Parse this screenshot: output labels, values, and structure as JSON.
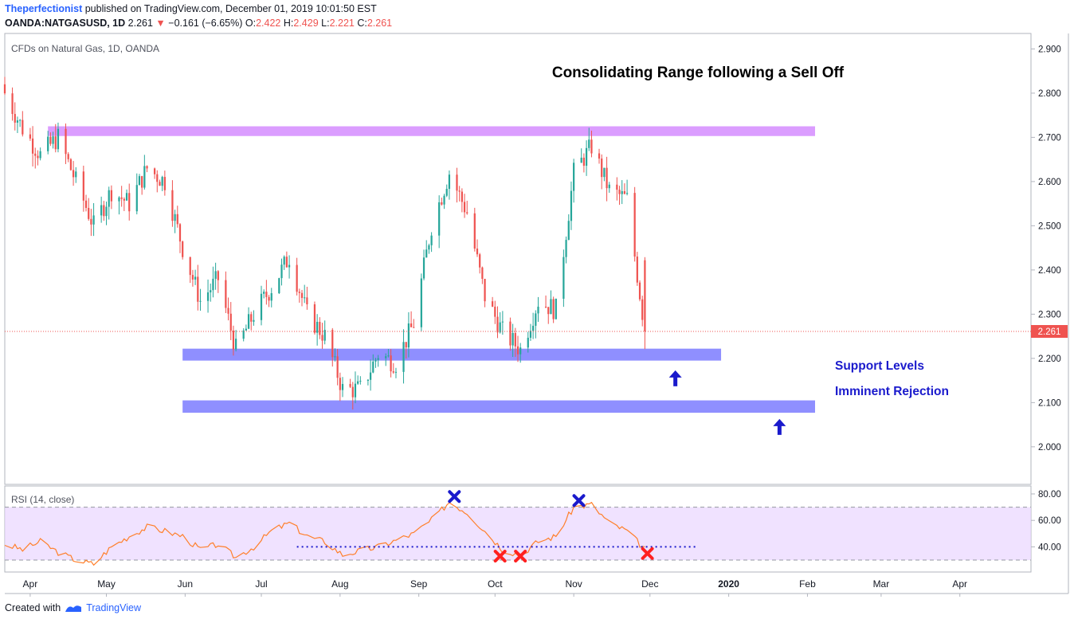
{
  "header": {
    "author": "Theperfectionist",
    "published": "published on TradingView.com, December 01, 2019 10:01:50 EST",
    "symbol": "OANDA:NATGASUSD, 1D",
    "last": "2.261",
    "change": "−0.161 (−6.65%)",
    "o_label": "O:",
    "o_value": "2.422",
    "h_label": "H:",
    "h_value": "2.429",
    "l_label": "L:",
    "l_value": "2.221",
    "c_label": "C:",
    "c_value": "2.261"
  },
  "footer": {
    "created_with": "Created with",
    "brand": "TradingView"
  },
  "colors": {
    "up": "#26a69a",
    "down": "#ef5350",
    "support_zone": "#7b7bff",
    "resistance_zone": "#d58cff",
    "rsi_line": "#ff7f2a",
    "rsi_band": "#e9d5ff",
    "annotation_blue": "#1a1acc",
    "annotation_red": "#ff2020"
  },
  "chart_data": [
    {
      "type": "candlestick",
      "title": "CFDs on Natural Gas, 1D, OANDA",
      "annotation_title": "Consolidating Range following a Sell Off",
      "x_ticks": [
        "Apr",
        "May",
        "Jun",
        "Jul",
        "Aug",
        "Sep",
        "Oct",
        "Nov",
        "Dec",
        "2020",
        "Feb",
        "Mar",
        "Apr"
      ],
      "y_ticks": [
        "2.900",
        "2.800",
        "2.700",
        "2.600",
        "2.500",
        "2.400",
        "2.300",
        "2.200",
        "2.100",
        "2.000"
      ],
      "ylim": [
        1.915,
        2.935
      ],
      "last_price_label": "2.261",
      "last_price": 2.261,
      "x_range": [
        "2019-03-22",
        "2020-04-29"
      ],
      "closes": [
        [
          "2019-03-22",
          2.8
        ],
        [
          "2019-03-29",
          2.72
        ],
        [
          "2019-04-05",
          2.66
        ],
        [
          "2019-04-12",
          2.7
        ],
        [
          "2019-04-19",
          2.6
        ],
        [
          "2019-04-26",
          2.5
        ],
        [
          "2019-05-03",
          2.58
        ],
        [
          "2019-05-10",
          2.55
        ],
        [
          "2019-05-17",
          2.63
        ],
        [
          "2019-05-24",
          2.6
        ],
        [
          "2019-05-31",
          2.45
        ],
        [
          "2019-06-07",
          2.33
        ],
        [
          "2019-06-14",
          2.38
        ],
        [
          "2019-06-21",
          2.22
        ],
        [
          "2019-06-28",
          2.3
        ],
        [
          "2019-07-05",
          2.36
        ],
        [
          "2019-07-12",
          2.43
        ],
        [
          "2019-07-19",
          2.3
        ],
        [
          "2019-07-26",
          2.25
        ],
        [
          "2019-08-02",
          2.13
        ],
        [
          "2019-08-09",
          2.13
        ],
        [
          "2019-08-16",
          2.21
        ],
        [
          "2019-08-23",
          2.19
        ],
        [
          "2019-08-30",
          2.28
        ],
        [
          "2019-09-06",
          2.5
        ],
        [
          "2019-09-13",
          2.62
        ],
        [
          "2019-09-20",
          2.53
        ],
        [
          "2019-09-27",
          2.34
        ],
        [
          "2019-10-04",
          2.26
        ],
        [
          "2019-10-11",
          2.22
        ],
        [
          "2019-10-18",
          2.33
        ],
        [
          "2019-10-25",
          2.31
        ],
        [
          "2019-11-01",
          2.62
        ],
        [
          "2019-11-08",
          2.68
        ],
        [
          "2019-11-15",
          2.58
        ],
        [
          "2019-11-22",
          2.56
        ],
        [
          "2019-11-29",
          2.261
        ]
      ],
      "zones": [
        {
          "kind": "resistance",
          "from": "2019-04-08",
          "to": "2020-02-04",
          "low": 2.703,
          "high": 2.725
        },
        {
          "kind": "support",
          "from": "2019-05-31",
          "to": "2019-12-29",
          "low": 2.195,
          "high": 2.222
        },
        {
          "kind": "support",
          "from": "2019-05-31",
          "to": "2020-02-04",
          "low": 2.077,
          "high": 2.105
        }
      ],
      "arrows_up": [
        {
          "date": "2019-12-11",
          "value": 2.155
        },
        {
          "date": "2020-01-21",
          "value": 2.045
        }
      ],
      "annotations": [
        "Support Levels",
        "Imminent Rejection"
      ]
    },
    {
      "type": "line",
      "title": "RSI (14, close)",
      "y_ticks": [
        "80.00",
        "60.00",
        "40.00"
      ],
      "ylim": [
        21,
        86
      ],
      "bands": [
        30,
        70
      ],
      "trend_line": {
        "from": "2019-07-15",
        "to": "2019-12-20",
        "value": 40
      },
      "points": [
        [
          "2019-03-22",
          42
        ],
        [
          "2019-03-29",
          38
        ],
        [
          "2019-04-05",
          44
        ],
        [
          "2019-04-12",
          36
        ],
        [
          "2019-04-19",
          30
        ],
        [
          "2019-04-26",
          27
        ],
        [
          "2019-05-03",
          40
        ],
        [
          "2019-05-10",
          48
        ],
        [
          "2019-05-17",
          55
        ],
        [
          "2019-05-24",
          52
        ],
        [
          "2019-05-31",
          48
        ],
        [
          "2019-06-07",
          38
        ],
        [
          "2019-06-14",
          42
        ],
        [
          "2019-06-21",
          32
        ],
        [
          "2019-06-28",
          40
        ],
        [
          "2019-07-05",
          52
        ],
        [
          "2019-07-12",
          58
        ],
        [
          "2019-07-19",
          48
        ],
        [
          "2019-07-26",
          44
        ],
        [
          "2019-08-02",
          34
        ],
        [
          "2019-08-09",
          37
        ],
        [
          "2019-08-16",
          40
        ],
        [
          "2019-08-23",
          45
        ],
        [
          "2019-08-30",
          50
        ],
        [
          "2019-09-06",
          60
        ],
        [
          "2019-09-13",
          74
        ],
        [
          "2019-09-20",
          66
        ],
        [
          "2019-09-27",
          52
        ],
        [
          "2019-10-04",
          38
        ],
        [
          "2019-10-11",
          34
        ],
        [
          "2019-10-18",
          44
        ],
        [
          "2019-10-25",
          48
        ],
        [
          "2019-11-01",
          70
        ],
        [
          "2019-11-08",
          72
        ],
        [
          "2019-11-15",
          58
        ],
        [
          "2019-11-22",
          52
        ],
        [
          "2019-11-29",
          38
        ]
      ],
      "markers": [
        {
          "date": "2019-09-15",
          "value": 78,
          "color": "blue"
        },
        {
          "date": "2019-10-03",
          "value": 33,
          "color": "red"
        },
        {
          "date": "2019-10-11",
          "value": 33,
          "color": "red"
        },
        {
          "date": "2019-11-03",
          "value": 75,
          "color": "blue"
        },
        {
          "date": "2019-11-30",
          "value": 35,
          "color": "red"
        }
      ]
    }
  ]
}
